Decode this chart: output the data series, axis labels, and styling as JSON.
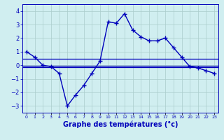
{
  "hours": [
    0,
    1,
    2,
    3,
    4,
    5,
    6,
    7,
    8,
    9,
    10,
    11,
    12,
    13,
    14,
    15,
    16,
    17,
    18,
    19,
    20,
    21,
    22,
    23
  ],
  "main_line": [
    1.0,
    0.6,
    0.0,
    -0.1,
    -0.6,
    -3.0,
    -2.2,
    -1.5,
    -0.6,
    0.3,
    3.2,
    3.1,
    3.8,
    2.6,
    2.1,
    1.8,
    1.8,
    2.0,
    1.3,
    0.6,
    -0.1,
    -0.2,
    -0.4,
    -0.6
  ],
  "ref_line1_y": -0.15,
  "ref_line2_y": -0.05,
  "ref_line3_y": 0.45,
  "line_color": "#0000bb",
  "bg_color": "#d0eef0",
  "grid_color": "#aacccc",
  "xlabel": "Graphe des températures (°c)",
  "ylim": [
    -3.5,
    4.5
  ],
  "xlim": [
    -0.5,
    23.5
  ],
  "yticks": [
    -3,
    -2,
    -1,
    0,
    1,
    2,
    3,
    4
  ],
  "xtick_labels": [
    "0",
    "1",
    "2",
    "3",
    "4",
    "5",
    "6",
    "7",
    "8",
    "9",
    "10",
    "11",
    "12",
    "13",
    "14",
    "15",
    "16",
    "17",
    "18",
    "19",
    "20",
    "21",
    "22",
    "23"
  ]
}
